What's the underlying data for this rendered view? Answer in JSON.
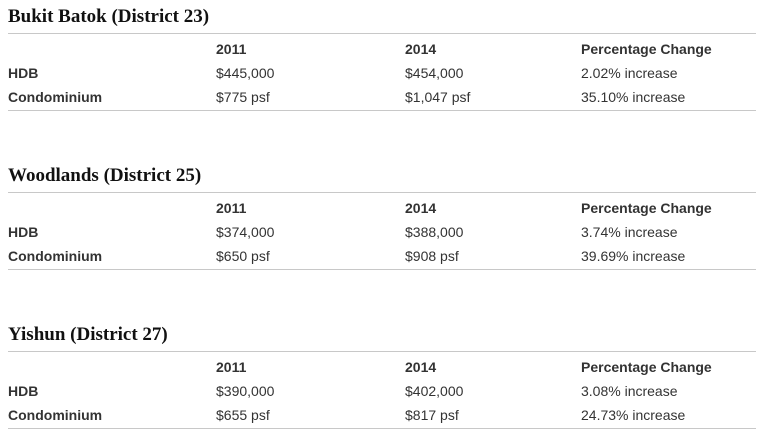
{
  "columns": [
    "",
    "2011",
    "2014",
    "Percentage Change"
  ],
  "sections": [
    {
      "title": "Bukit Batok (District 23)",
      "rows": [
        {
          "label": "HDB",
          "y2011": "$445,000",
          "y2014": "$454,000",
          "change": "2.02% increase"
        },
        {
          "label": "Condominium",
          "y2011": "$775 psf",
          "y2014": "$1,047 psf",
          "change": "35.10% increase"
        }
      ]
    },
    {
      "title": "Woodlands (District 25)",
      "rows": [
        {
          "label": "HDB",
          "y2011": "$374,000",
          "y2014": "$388,000",
          "change": "3.74% increase"
        },
        {
          "label": "Condominium",
          "y2011": "$650 psf",
          "y2014": "$908 psf",
          "change": "39.69% increase"
        }
      ]
    },
    {
      "title": "Yishun (District 27)",
      "rows": [
        {
          "label": "HDB",
          "y2011": "$390,000",
          "y2014": "$402,000",
          "change": "3.08% increase"
        },
        {
          "label": "Condominium",
          "y2011": "$655 psf",
          "y2014": "$817 psf",
          "change": "24.73% increase"
        }
      ]
    }
  ]
}
